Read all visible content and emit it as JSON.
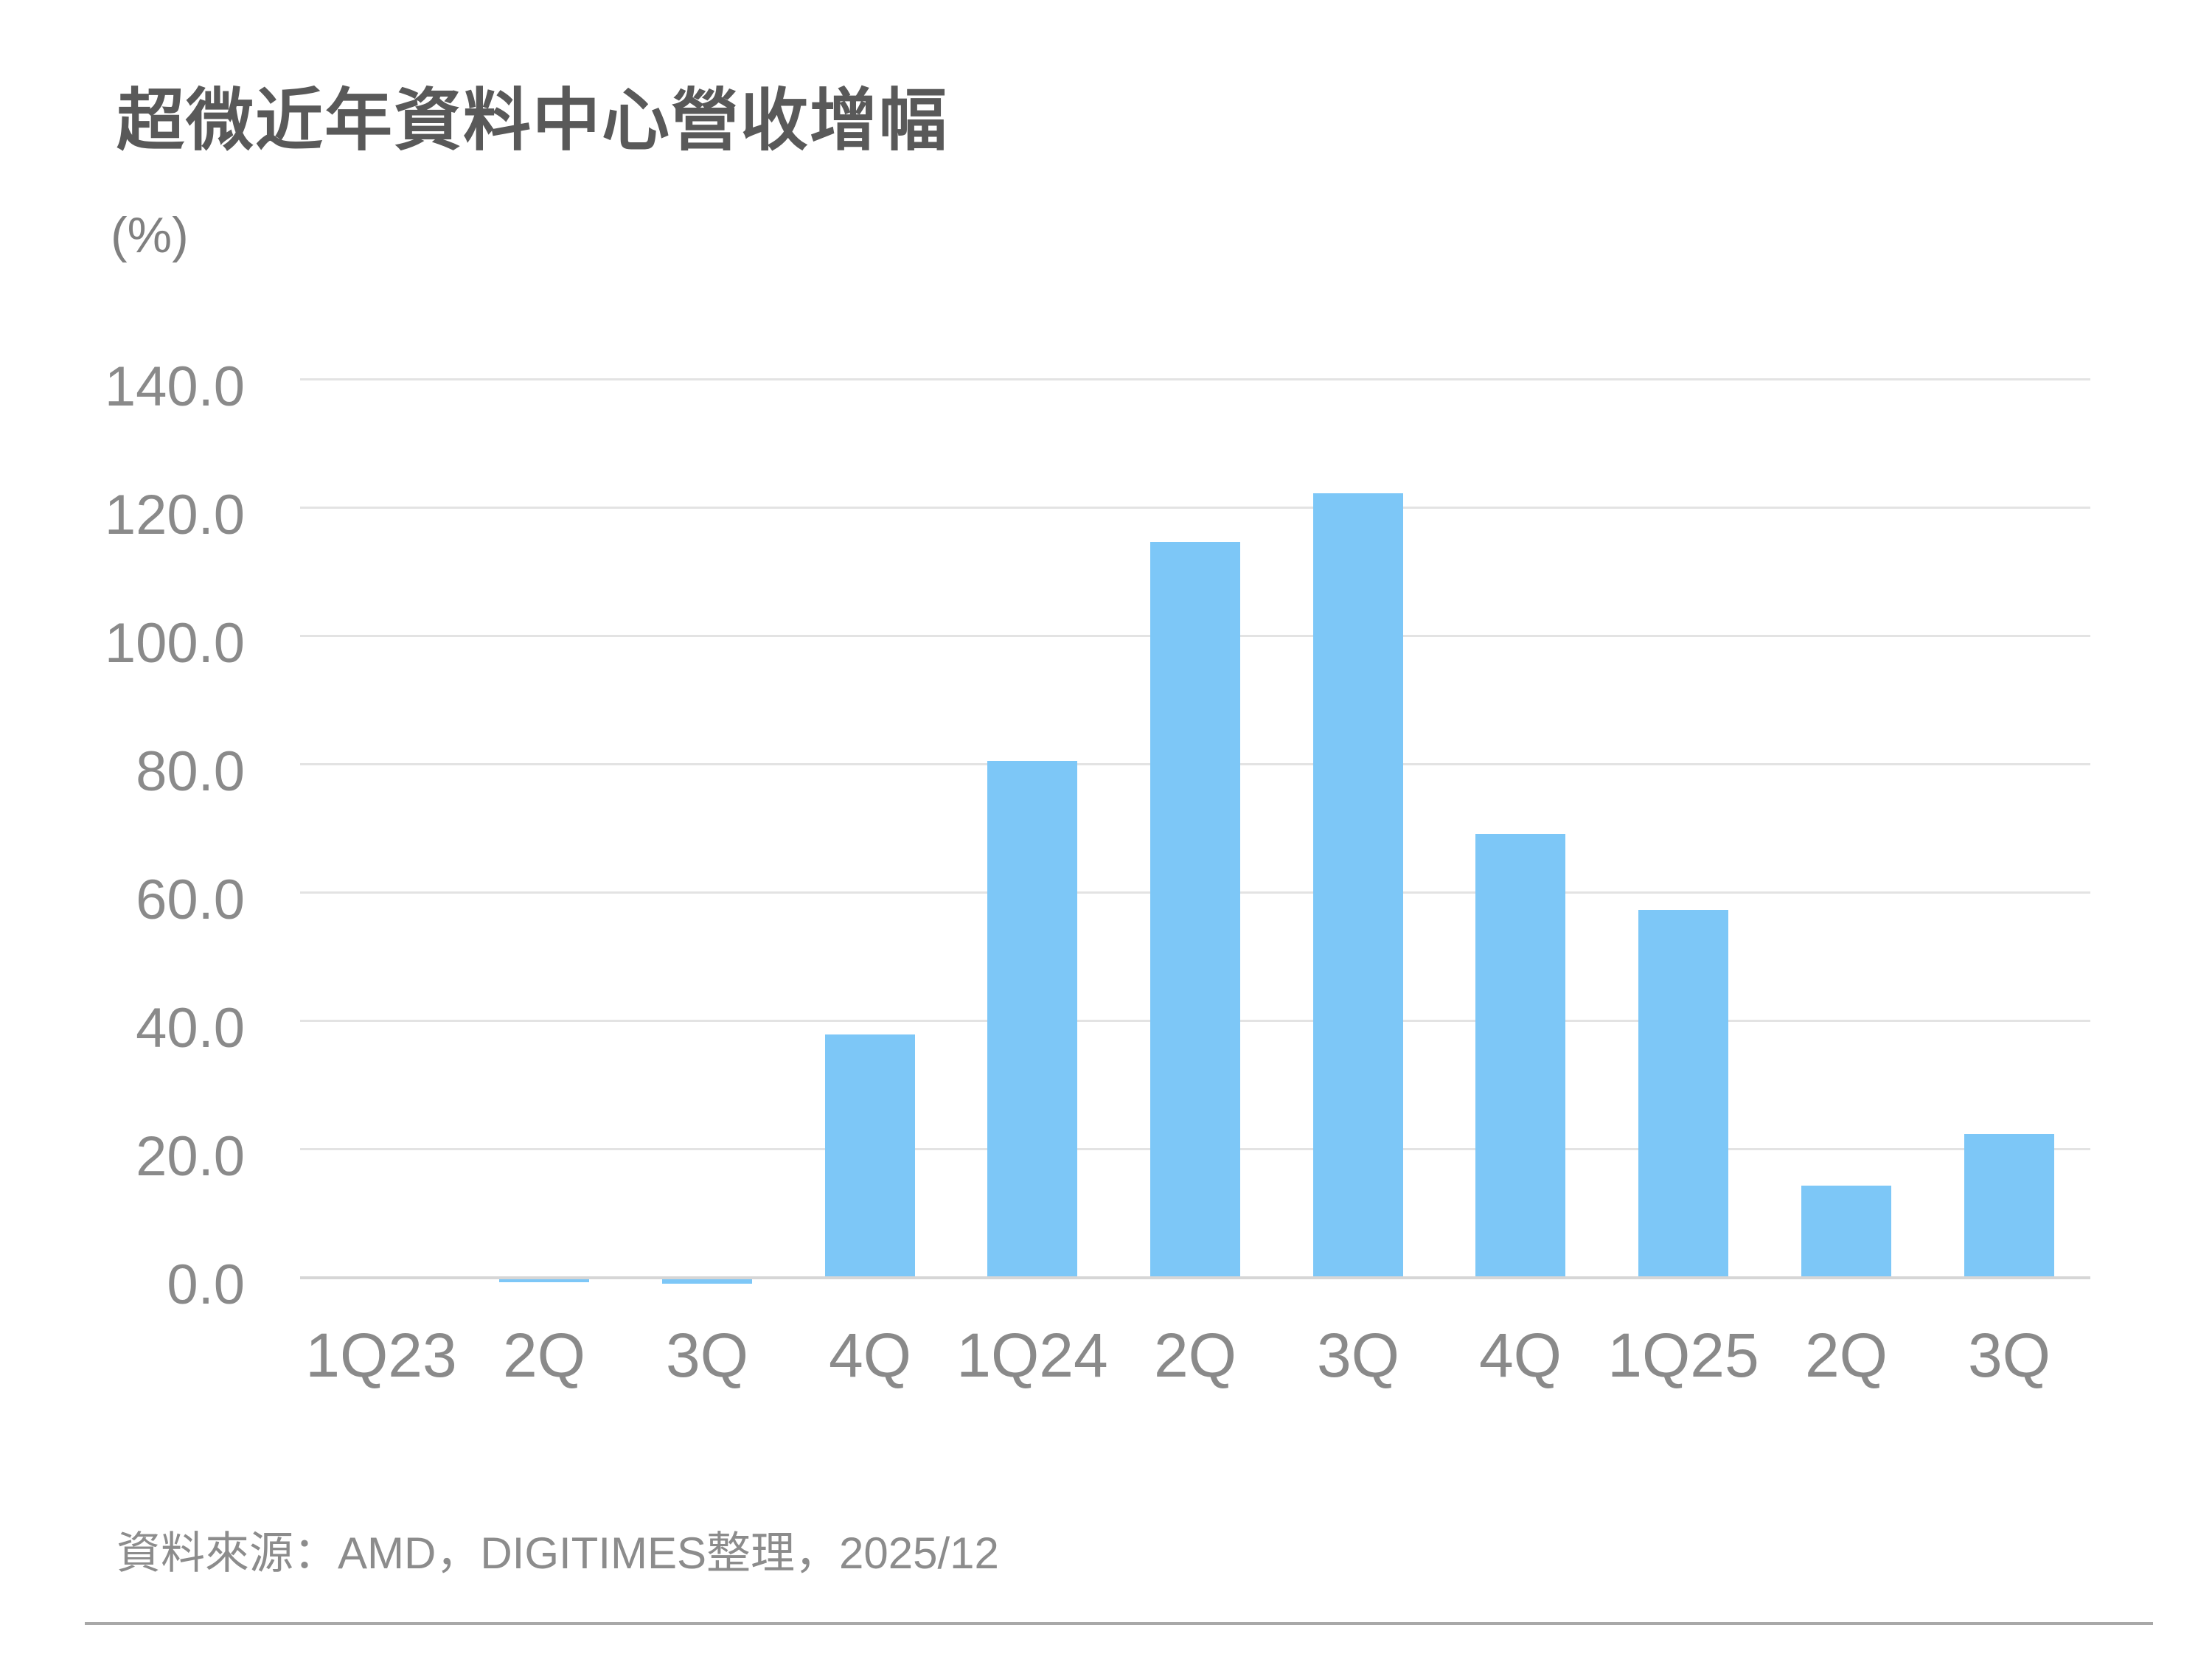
{
  "page": {
    "title": "超微近年資料中心營收增幅",
    "unit_label": "(%)",
    "source_note": "資料來源：AMD，DIGITIMES整理，2025/12"
  },
  "colors": {
    "background": "#ffffff",
    "bar": "#7dc7f7",
    "title_text": "#595959",
    "axis_text": "#8a8a8a",
    "unit_text": "#808080",
    "gridline": "#e3e3e3",
    "baseline": "#d6d6d6",
    "source_text": "#8c8c8c",
    "divider": "#a8a8a8"
  },
  "chart_data": {
    "type": "bar",
    "title": "超微近年資料中心營收增幅",
    "xlabel": "",
    "ylabel": "(%)",
    "categories": [
      "1Q23",
      "2Q",
      "3Q",
      "4Q",
      "1Q24",
      "2Q",
      "3Q",
      "4Q",
      "1Q25",
      "2Q",
      "3Q"
    ],
    "values": [
      0.0,
      -0.5,
      -0.7,
      37.7,
      80.3,
      114.5,
      122.1,
      69.0,
      57.1,
      14.1,
      22.2
    ],
    "ylim": [
      0,
      140
    ],
    "ytick_step": 20,
    "ytick_labels": [
      "0.0",
      "20.0",
      "40.0",
      "60.0",
      "80.0",
      "100.0",
      "120.0",
      "140.0"
    ],
    "grid": "horizontal",
    "legend": "none",
    "bar_color": "#7dc7f7"
  }
}
